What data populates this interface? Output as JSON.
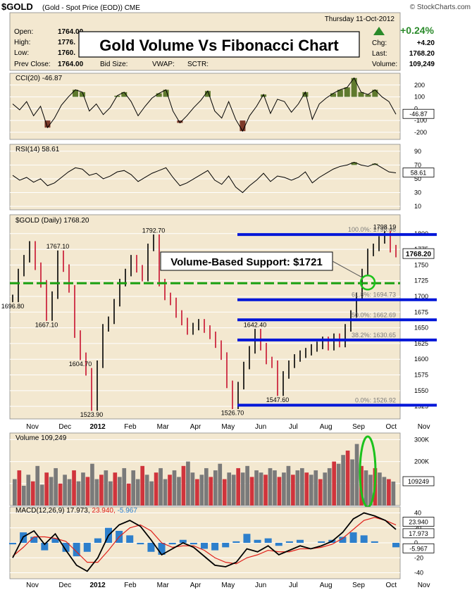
{
  "header": {
    "symbol": "$GOLD",
    "description": "(Gold - Spot Price (EOD)) CME",
    "watermark": "© StockCharts.com",
    "date": "Thursday  11-Oct-2012",
    "change_pct": "+0.24%",
    "chg_label": "Chg:",
    "chg_value": "+4.20",
    "last_label": "Last:",
    "last_value": "1768.20",
    "volume_label": "Volume:",
    "volume_value": "109,249",
    "open_label": "Open:",
    "open_value": "1764.00",
    "high_label": "High:",
    "high_value": "1776.",
    "low_label": "Low:",
    "low_value": "1760.",
    "prevclose_label": "Prev Close:",
    "prevclose_value": "1764.00",
    "bidsize_label": "Bid Size:",
    "vwap_label": "VWAP:",
    "sctr_label": "SCTR:"
  },
  "overlay_title": "Gold Volume Vs Fibonacci Chart",
  "support_label": "Volume-Based Support: $1721",
  "colors": {
    "bg_panel": "#f3e8d0",
    "grid": "#ffffff",
    "fib": "#0016d8",
    "support": "#1aa012",
    "up": "#000000",
    "down": "#c8102e",
    "vol_up": "#7a7a7a",
    "vol_down": "#d0343c",
    "macd_line": "#000000",
    "signal_line": "#e0201a",
    "hist": "#2d7fcc",
    "osc_fill": "#5f7a2e",
    "osc_neg_fill": "#7d3a2a",
    "circle": "#1cc21c"
  },
  "chart_data": [
    {
      "type": "line",
      "title": "CCI(20) -46.87",
      "yticks": [
        200,
        100,
        0,
        -100,
        -200
      ],
      "ylim": [
        -260,
        300
      ],
      "last_value_label": "-46.87",
      "values": [
        40,
        -10,
        60,
        -60,
        20,
        -160,
        -80,
        30,
        100,
        160,
        140,
        -20,
        40,
        -50,
        10,
        110,
        140,
        60,
        -60,
        20,
        90,
        130,
        160,
        -20,
        -120,
        -60,
        10,
        70,
        150,
        -20,
        -80,
        60,
        -90,
        -190,
        -60,
        20,
        120,
        -40,
        80,
        60,
        -30,
        40,
        140,
        -90,
        40,
        90,
        130,
        160,
        180,
        260,
        140,
        120,
        160,
        100,
        60,
        -46.87
      ]
    },
    {
      "type": "line",
      "title": "RSI(14) 58.61",
      "yticks": [
        90,
        70,
        50,
        30,
        10
      ],
      "ylim": [
        5,
        100
      ],
      "last_value_label": "58.61",
      "values": [
        55,
        48,
        52,
        45,
        50,
        40,
        44,
        52,
        60,
        66,
        64,
        55,
        58,
        50,
        54,
        60,
        62,
        56,
        46,
        52,
        58,
        62,
        66,
        52,
        40,
        44,
        50,
        56,
        62,
        48,
        42,
        54,
        38,
        30,
        40,
        48,
        58,
        46,
        54,
        52,
        48,
        52,
        60,
        44,
        52,
        58,
        64,
        68,
        70,
        74,
        70,
        68,
        72,
        66,
        60,
        58.61
      ]
    },
    {
      "type": "line",
      "title": "$GOLD (Daily) 1768.20",
      "ylim": [
        1505,
        1830
      ],
      "yticks": [
        1800,
        1775,
        1750,
        1725,
        1700,
        1675,
        1650,
        1625,
        1600,
        1575,
        1550,
        1525
      ],
      "x_labels": [
        "Nov",
        "Dec",
        "2012",
        "Feb",
        "Mar",
        "Apr",
        "May",
        "Jun",
        "Jul",
        "Aug",
        "Sep",
        "Oct",
        "Nov"
      ],
      "last_value_label": "1768.20",
      "values": [
        1696.8,
        1738,
        1760,
        1782,
        1748,
        1720,
        1667.1,
        1702,
        1767.1,
        1745,
        1712,
        1640,
        1604.7,
        1580,
        1523.9,
        1592,
        1650,
        1662,
        1690,
        1722,
        1738,
        1760,
        1744,
        1730,
        1778,
        1792.7,
        1722,
        1700,
        1692,
        1672,
        1660,
        1645,
        1652,
        1658,
        1648,
        1638,
        1624,
        1605,
        1560,
        1526.7,
        1558,
        1590,
        1615,
        1642.4,
        1620,
        1598,
        1592,
        1547.6,
        1575,
        1592,
        1602,
        1608,
        1612,
        1618,
        1622,
        1630,
        1620,
        1635,
        1625,
        1650,
        1672,
        1700,
        1738,
        1770,
        1778,
        1790,
        1798.19,
        1776,
        1768.2
      ],
      "annotations": [
        "1696.80",
        "1667.10",
        "1604.70",
        "1523.90",
        "1767.10",
        "1792.70",
        "1642.40",
        "1526.70",
        "1547.60",
        "1798.19"
      ],
      "fibonacci": [
        {
          "label": "100.0%: 1798.46",
          "value": 1798.46
        },
        {
          "label": "61.8%: 1694.73",
          "value": 1694.73
        },
        {
          "label": "50.0%: 1662.69",
          "value": 1662.69
        },
        {
          "label": "38.2%: 1630.65",
          "value": 1630.65
        },
        {
          "label": "0.0%: 1526.92",
          "value": 1526.92
        }
      ],
      "support_value": 1721
    },
    {
      "type": "bar",
      "title": "Volume 109,249",
      "yticks_labels": [
        "300K",
        "200K",
        "100K"
      ],
      "yticks": [
        300,
        200,
        100
      ],
      "ylim": [
        0,
        330
      ],
      "last_value_label": "109249",
      "values": [
        120,
        160,
        90,
        140,
        110,
        180,
        95,
        150,
        130,
        170,
        100,
        140,
        120,
        160,
        110,
        150,
        130,
        190,
        120,
        140,
        160,
        110,
        150,
        130,
        170,
        100,
        160,
        120,
        180,
        140,
        110,
        150,
        170,
        120,
        140,
        160,
        130,
        180,
        200,
        150,
        120,
        140,
        170,
        130,
        160,
        190,
        120,
        150,
        140,
        170,
        150,
        180,
        130,
        160,
        150,
        140,
        170,
        160,
        130,
        150,
        180,
        140,
        160,
        170,
        150,
        140,
        160,
        120,
        150,
        170,
        200,
        190,
        230,
        250,
        210,
        280,
        180,
        160,
        140,
        170,
        150,
        130,
        120,
        109
      ]
    },
    {
      "type": "line",
      "title": "MACD(12,26,9) 17.973, 23.940, -5.967",
      "title_parts": [
        "MACD(12,26,9) 17.973,",
        "23.940,",
        "-5.967"
      ],
      "yticks": [
        40,
        20,
        0,
        -20,
        -40
      ],
      "ylim": [
        -48,
        48
      ],
      "last_value_labels": [
        "23.940",
        "17.973",
        "-5.967"
      ],
      "x_labels": [
        "Nov",
        "Dec",
        "2012",
        "Feb",
        "Mar",
        "Apr",
        "May",
        "Jun",
        "Jul",
        "Aug",
        "Sep",
        "Oct",
        "Nov"
      ],
      "series": [
        {
          "name": "MACD(12,26,9)",
          "values": [
            -20,
            8,
            16,
            -2,
            12,
            -10,
            -30,
            -38,
            -20,
            10,
            24,
            30,
            22,
            4,
            -16,
            -8,
            0,
            -6,
            -18,
            -30,
            -32,
            -26,
            -8,
            -12,
            -4,
            -16,
            -10,
            -4,
            -8,
            -4,
            2,
            14,
            32,
            40,
            36,
            30,
            17.973
          ]
        },
        {
          "name": "Signal",
          "values": [
            -18,
            -6,
            8,
            8,
            6,
            2,
            -12,
            -26,
            -26,
            -10,
            8,
            20,
            24,
            16,
            0,
            -6,
            -4,
            -4,
            -10,
            -20,
            -26,
            -28,
            -20,
            -16,
            -10,
            -12,
            -12,
            -8,
            -8,
            -6,
            -2,
            6,
            18,
            30,
            34,
            30,
            23.94
          ]
        },
        {
          "name": "Histogram",
          "values": [
            -2,
            14,
            8,
            -10,
            6,
            -12,
            -18,
            -12,
            6,
            20,
            16,
            10,
            -2,
            -12,
            -16,
            -2,
            4,
            -2,
            -8,
            -10,
            -6,
            2,
            12,
            4,
            6,
            -4,
            2,
            4,
            0,
            2,
            4,
            8,
            14,
            10,
            2,
            0,
            -5.967
          ]
        }
      ]
    }
  ]
}
